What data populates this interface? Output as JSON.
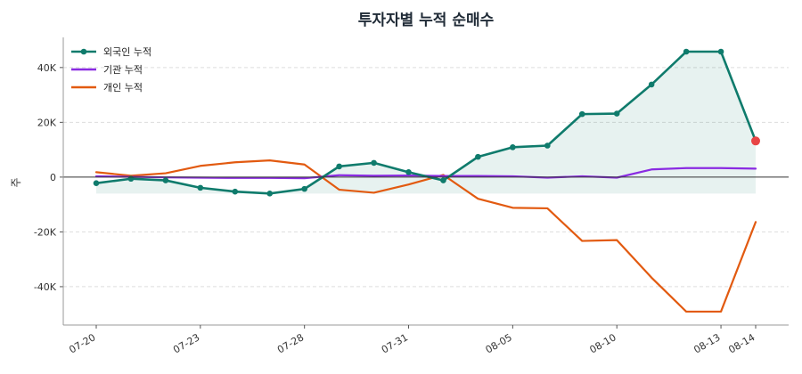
{
  "chart_data": {
    "type": "line",
    "title": "투자자별 누적 순매수",
    "ylabel": "주",
    "xlabel": "",
    "ylim": [
      -54000,
      51000
    ],
    "grid": "y-dashed",
    "legend_position": "top-left",
    "x": [
      "07-20",
      "07-21",
      "07-22",
      "07-23",
      "07-24",
      "07-27",
      "07-28",
      "07-29",
      "07-30",
      "07-31",
      "08-03",
      "08-04",
      "08-05",
      "08-06",
      "08-07",
      "08-10",
      "08-11",
      "08-12",
      "08-13",
      "08-14"
    ],
    "x_tick_labels": [
      "07-20",
      "07-23",
      "07-28",
      "07-31",
      "08-05",
      "08-10",
      "08-13",
      "08-14"
    ],
    "y_ticks": [
      -40000,
      -20000,
      0,
      20000,
      40000
    ],
    "y_tick_labels": [
      "-40K",
      "-20K",
      "0",
      "20K",
      "40K"
    ],
    "series": [
      {
        "name": "외국인 누적",
        "color": "#0f7b6c",
        "markers": true,
        "fill": true,
        "values": [
          -2200,
          -600,
          -1200,
          -3900,
          -5300,
          -6000,
          -4300,
          3900,
          5200,
          1800,
          -1200,
          7400,
          10900,
          11500,
          23000,
          23200,
          33800,
          45800,
          45800,
          13200
        ]
      },
      {
        "name": "기관 누적",
        "color": "#8a2be2",
        "markers": false,
        "values": [
          300,
          100,
          -100,
          -200,
          -300,
          -300,
          -400,
          700,
          500,
          600,
          400,
          400,
          300,
          -200,
          300,
          -200,
          2800,
          3300,
          3300,
          3100
        ]
      },
      {
        "name": "개인 누적",
        "color": "#e25a10",
        "markers": false,
        "values": [
          1800,
          500,
          1400,
          4100,
          5400,
          6100,
          4600,
          -4600,
          -5700,
          -2700,
          800,
          -7900,
          -11200,
          -11400,
          -23300,
          -23000,
          -36700,
          -49100,
          -49100,
          -16400
        ]
      }
    ],
    "fill_baseline": -6000,
    "last_point_highlight_color": "#e84545"
  }
}
